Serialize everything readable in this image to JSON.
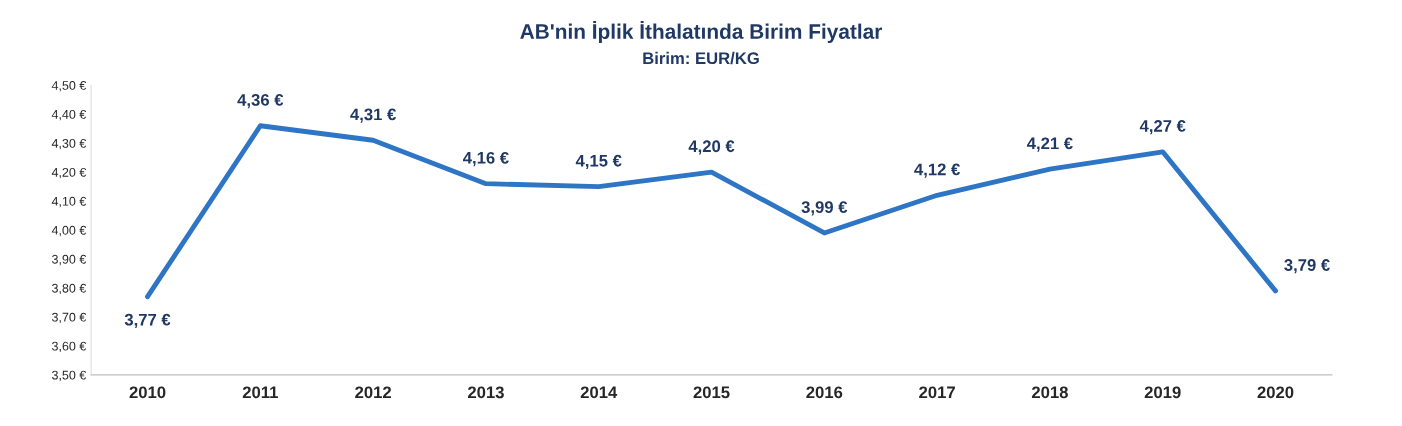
{
  "chart_data": {
    "type": "line",
    "title": "AB'nin İplik İthalatında Birim Fiyatlar",
    "subtitle": "Birim: EUR/KG",
    "categories": [
      "2010",
      "2011",
      "2012",
      "2013",
      "2014",
      "2015",
      "2016",
      "2017",
      "2018",
      "2019",
      "2020"
    ],
    "series": [
      {
        "color": "#2e75c6",
        "values": [
          3.77,
          4.36,
          4.31,
          4.16,
          4.15,
          4.2,
          3.99,
          4.12,
          4.21,
          4.27,
          3.79
        ],
        "value_labels": [
          "3,77 €",
          "4,36 €",
          "4,31 €",
          "4,16 €",
          "4,15 €",
          "4,20 €",
          "3,99 €",
          "4,12 €",
          "4,21 €",
          "4,27 €",
          "3,79 €"
        ]
      }
    ],
    "ylim": [
      3.5,
      4.5
    ],
    "yticks": [
      {
        "value": 3.5,
        "label": "3,50 €"
      },
      {
        "value": 3.6,
        "label": "3,60 €"
      },
      {
        "value": 3.7,
        "label": "3,70 €"
      },
      {
        "value": 3.8,
        "label": "3,80 €"
      },
      {
        "value": 3.9,
        "label": "3,90 €"
      },
      {
        "value": 4.0,
        "label": "4,00 €"
      },
      {
        "value": 4.1,
        "label": "4,10 €"
      },
      {
        "value": 4.2,
        "label": "4,20 €"
      },
      {
        "value": 4.3,
        "label": "4,30 €"
      },
      {
        "value": 4.4,
        "label": "4,40 €"
      },
      {
        "value": 4.5,
        "label": "4,50 €"
      }
    ],
    "grid": false,
    "marker": "none",
    "line_style": "solid"
  }
}
